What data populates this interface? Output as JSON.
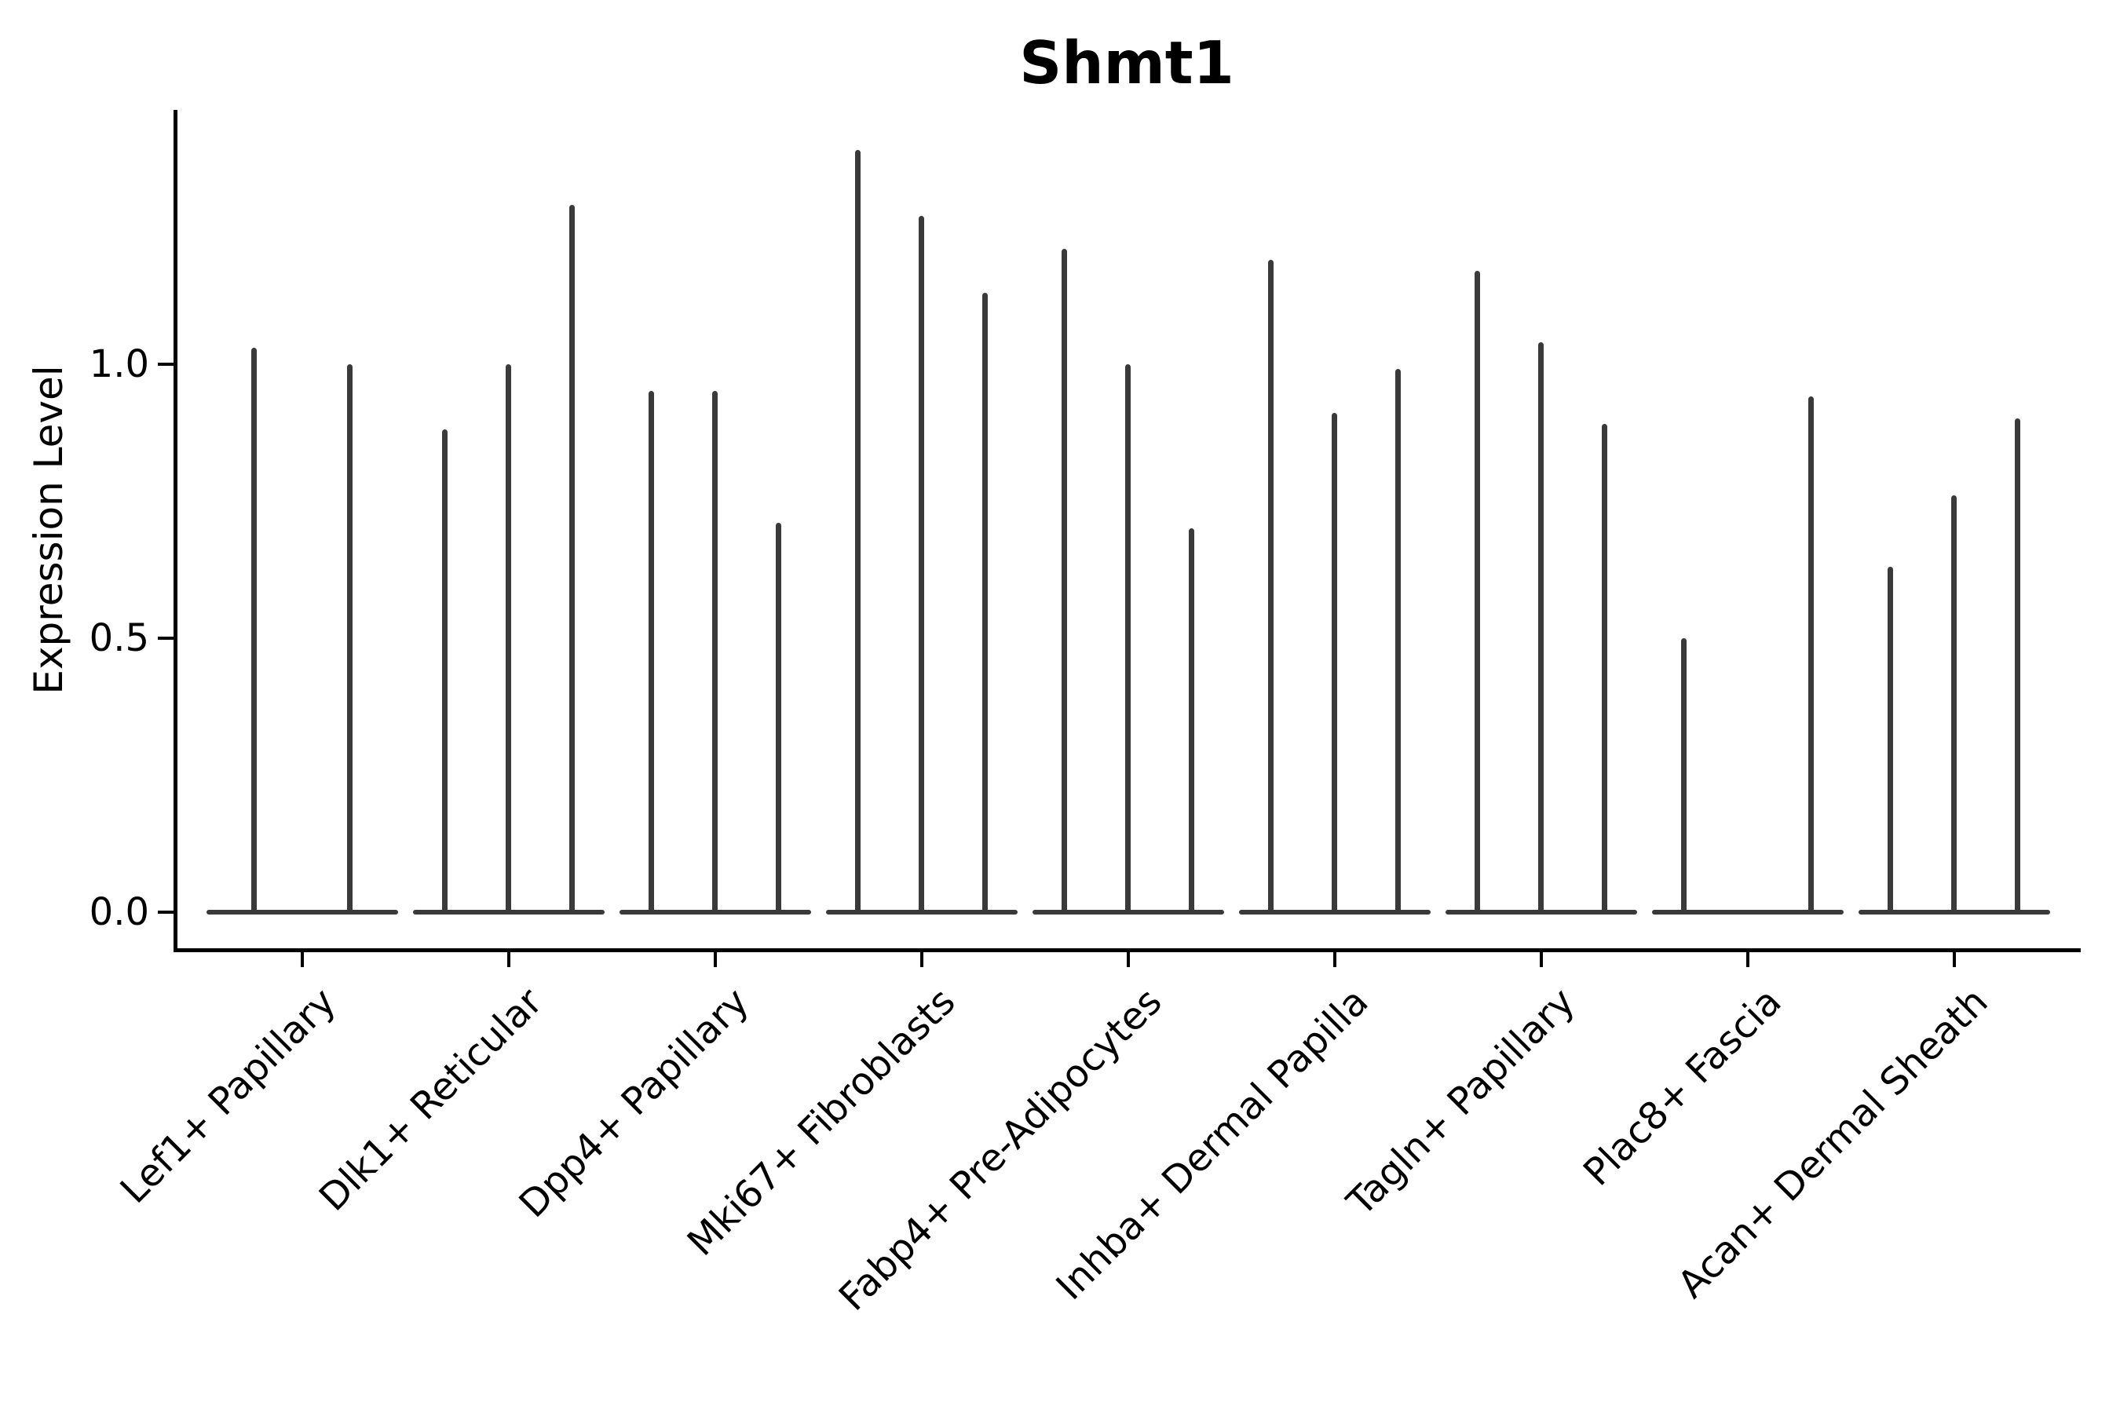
{
  "title": "Shmt1",
  "y_axis": {
    "label": "Expression Level",
    "ticks": [
      {
        "label": "0.0",
        "value": 0.0
      },
      {
        "label": "0.5",
        "value": 0.5
      },
      {
        "label": "1.0",
        "value": 1.0
      }
    ]
  },
  "colors": {
    "violin": "#3a3a3a",
    "axis": "#000000",
    "background": "#ffffff"
  },
  "chart_data": {
    "type": "violin",
    "title": "Shmt1",
    "xlabel": "",
    "ylabel": "Expression Level",
    "ylim": [
      0,
      1.46
    ],
    "yticks": [
      0.0,
      0.5,
      1.0
    ],
    "grid": false,
    "legend": "none",
    "description": "Grouped violin plot; each violin collapses to a flat mass at expression 0 with a thin spike reaching the maximum expression value listed below (0 = no spike, flat violin only).",
    "categories": [
      "Lef1+ Papillary",
      "Dlk1+ Reticular",
      "Dpp4+ Papillary",
      "Mki67+ Fibroblasts",
      "Fabp4+ Pre-Adipocytes",
      "Inhba+ Dermal Papilla",
      "Tagln+ Papillary",
      "Plac8+ Fascia",
      "Acan+ Dermal Sheath"
    ],
    "groups": [
      {
        "label": "Lef1+ Papillary",
        "violin_max_values": [
          1.03,
          1.0
        ]
      },
      {
        "label": "Dlk1+ Reticular",
        "violin_max_values": [
          0.88,
          1.0,
          1.29
        ]
      },
      {
        "label": "Dpp4+ Papillary",
        "violin_max_values": [
          0.95,
          0.95,
          0.71
        ]
      },
      {
        "label": "Mki67+ Fibroblasts",
        "violin_max_values": [
          1.39,
          1.27,
          1.13
        ]
      },
      {
        "label": "Fabp4+ Pre-Adipocytes",
        "violin_max_values": [
          1.21,
          1.0,
          0.7
        ]
      },
      {
        "label": "Inhba+ Dermal Papilla",
        "violin_max_values": [
          1.19,
          0.91,
          0.99
        ]
      },
      {
        "label": "Tagln+ Papillary",
        "violin_max_values": [
          1.17,
          1.04,
          0.89
        ]
      },
      {
        "label": "Plac8+ Fascia",
        "violin_max_values": [
          0.5,
          0.0,
          0.94
        ]
      },
      {
        "label": "Acan+ Dermal Sheath",
        "violin_max_values": [
          0.63,
          0.76,
          0.9
        ]
      }
    ]
  }
}
